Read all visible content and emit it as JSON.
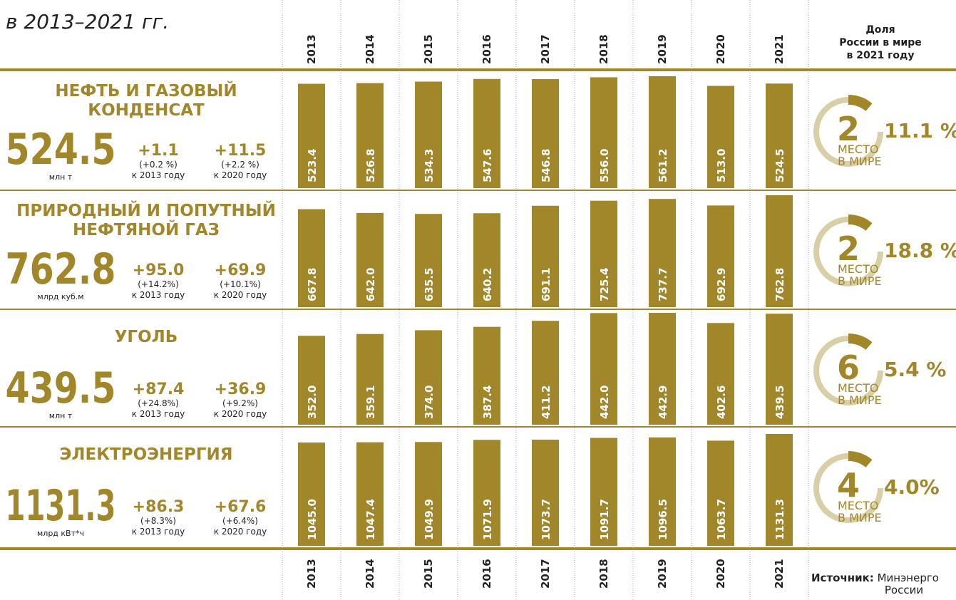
{
  "subtitle": "в 2013–2021 гг.",
  "share_header": [
    "Доля",
    "России в мире",
    "в 2021 году"
  ],
  "rank_label": [
    "МЕСТО",
    "В МИРЕ"
  ],
  "source_label": "Источник:",
  "source": [
    "Минэнерго",
    "России"
  ],
  "years": [
    "2013",
    "2014",
    "2015",
    "2016",
    "2017",
    "2018",
    "2019",
    "2020",
    "2021"
  ],
  "chart_data": [
    {
      "type": "bar",
      "color": "#a2862a",
      "title": [
        "НЕФТЬ И ГАЗОВЫЙ",
        "КОНДЕНСАТ"
      ],
      "total": 524.5,
      "unit": "млн т",
      "changes": [
        {
          "value": "+1.1",
          "percent": "(+0.2 %)",
          "base": "к 2013 году"
        },
        {
          "value": "+11.5",
          "percent": "(+2.2 %)",
          "base": "к 2020 году"
        }
      ],
      "rank": 2,
      "share": "11.1 %",
      "values": [
        523.4,
        526.8,
        534.3,
        547.6,
        546.8,
        556.0,
        561.2,
        513.0,
        524.5
      ],
      "value_labels": [
        "523.4",
        "526.8",
        "534.3",
        "547.6",
        "546.8",
        "556.0",
        "561.2",
        "513.0",
        "524.5"
      ]
    },
    {
      "type": "bar",
      "color": "#a2862a",
      "title": [
        "ПРИРОДНЫЙ И ПОПУТНЫЙ",
        "НЕФТЯНОЙ ГАЗ"
      ],
      "total": 762.8,
      "unit": "млрд куб.м",
      "changes": [
        {
          "value": "+95.0",
          "percent": "(+14.2%)",
          "base": "к 2013 году"
        },
        {
          "value": "+69.9",
          "percent": "(+10.1%)",
          "base": "к 2020 году"
        }
      ],
      "rank": 2,
      "share": "18.8 %",
      "values": [
        667.8,
        642.0,
        635.5,
        640.2,
        691.1,
        725.4,
        737.7,
        692.9,
        762.8
      ],
      "value_labels": [
        "667.8",
        "642.0",
        "635.5",
        "640.2",
        "691.1",
        "725.4",
        "737.7",
        "692.9",
        "762.8"
      ]
    },
    {
      "type": "bar",
      "color": "#a2862a",
      "title": [
        "УГОЛЬ"
      ],
      "total": 439.5,
      "unit": "млн т",
      "changes": [
        {
          "value": "+87.4",
          "percent": "(+24.8%)",
          "base": "к 2013 году"
        },
        {
          "value": "+36.9",
          "percent": "(+9.2%)",
          "base": "к 2020 году"
        }
      ],
      "rank": 6,
      "share": "5.4 %",
      "values": [
        352.0,
        359.1,
        374.0,
        387.4,
        411.2,
        442.0,
        442.9,
        402.6,
        439.5
      ],
      "value_labels": [
        "352.0",
        "359.1",
        "374.0",
        "387.4",
        "411.2",
        "442.0",
        "442.9",
        "402.6",
        "439.5"
      ]
    },
    {
      "type": "bar",
      "color": "#a2862a",
      "title": [
        "ЭЛЕКТРОЭНЕРГИЯ"
      ],
      "total": 1131.3,
      "unit": "млрд кВт*ч",
      "changes": [
        {
          "value": "+86.3",
          "percent": "(+8.3%)",
          "base": "к 2013 году"
        },
        {
          "value": "+67.6",
          "percent": "(+6.4%)",
          "base": "к 2020 году"
        }
      ],
      "rank": 4,
      "share": "4.0%",
      "values": [
        1045.0,
        1047.4,
        1049.9,
        1071.9,
        1073.7,
        1091.7,
        1096.5,
        1063.7,
        1131.3
      ],
      "value_labels": [
        "1045.0",
        "1047.4",
        "1049.9",
        "1071.9",
        "1073.7",
        "1091.7",
        "1096.5",
        "1063.7",
        "1131.3"
      ]
    }
  ]
}
